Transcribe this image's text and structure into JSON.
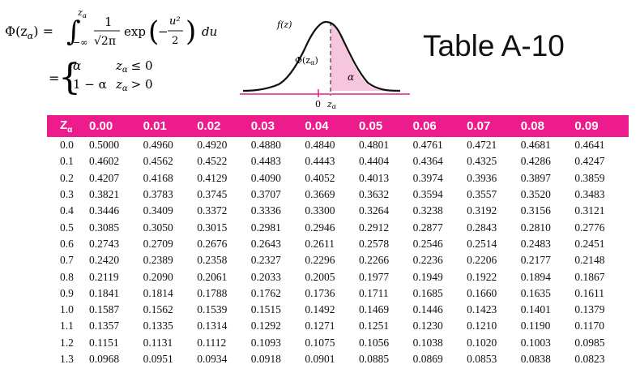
{
  "title": "Table A-10",
  "formula": {
    "lhs": "Φ(z",
    "sub_alpha": "α",
    "rhs_close": ") =",
    "integral_upper": "z",
    "integral_lower": "−∞",
    "frac_num": "1",
    "frac_den": "√2π",
    "exp_label": "exp",
    "exp_num": "u²",
    "exp_den": "2",
    "minus": "−",
    "du": "du",
    "eq2": "=",
    "case1_val": "α",
    "case1_cond": "z",
    "case1_op": "≤ 0",
    "case2_val": "1 − α",
    "case2_cond": "z",
    "case2_op": "> 0"
  },
  "curve": {
    "fz_label": "f(z)",
    "phi_label": "Φ(z",
    "phi_sub": "α",
    "phi_close": ")",
    "alpha_label": "α",
    "zero_label": "0",
    "z_label": "z",
    "z_sub": "α",
    "shade_color": "#f6c6dd",
    "line_color": "#ec1c8c"
  },
  "table": {
    "header_color": "#ec1c8c",
    "header_z": "Z",
    "header_z_sub": "α",
    "columns": [
      "0.00",
      "0.01",
      "0.02",
      "0.03",
      "0.04",
      "0.05",
      "0.06",
      "0.07",
      "0.08",
      "0.09"
    ],
    "rows": [
      {
        "z": "0.0",
        "values": [
          "0.5000",
          "0.4960",
          "0.4920",
          "0.4880",
          "0.4840",
          "0.4801",
          "0.4761",
          "0.4721",
          "0.4681",
          "0.4641"
        ]
      },
      {
        "z": "0.1",
        "values": [
          "0.4602",
          "0.4562",
          "0.4522",
          "0.4483",
          "0.4443",
          "0.4404",
          "0.4364",
          "0.4325",
          "0.4286",
          "0.4247"
        ]
      },
      {
        "z": "0.2",
        "values": [
          "0.4207",
          "0.4168",
          "0.4129",
          "0.4090",
          "0.4052",
          "0.4013",
          "0.3974",
          "0.3936",
          "0.3897",
          "0.3859"
        ]
      },
      {
        "z": "0.3",
        "values": [
          "0.3821",
          "0.3783",
          "0.3745",
          "0.3707",
          "0.3669",
          "0.3632",
          "0.3594",
          "0.3557",
          "0.3520",
          "0.3483"
        ]
      },
      {
        "z": "0.4",
        "values": [
          "0.3446",
          "0.3409",
          "0.3372",
          "0.3336",
          "0.3300",
          "0.3264",
          "0.3238",
          "0.3192",
          "0.3156",
          "0.3121"
        ]
      },
      {
        "z": "0.5",
        "values": [
          "0.3085",
          "0.3050",
          "0.3015",
          "0.2981",
          "0.2946",
          "0.2912",
          "0.2877",
          "0.2843",
          "0.2810",
          "0.2776"
        ]
      },
      {
        "z": "0.6",
        "values": [
          "0.2743",
          "0.2709",
          "0.2676",
          "0.2643",
          "0.2611",
          "0.2578",
          "0.2546",
          "0.2514",
          "0.2483",
          "0.2451"
        ]
      },
      {
        "z": "0.7",
        "values": [
          "0.2420",
          "0.2389",
          "0.2358",
          "0.2327",
          "0.2296",
          "0.2266",
          "0.2236",
          "0.2206",
          "0.2177",
          "0.2148"
        ]
      },
      {
        "z": "0.8",
        "values": [
          "0.2119",
          "0.2090",
          "0.2061",
          "0.2033",
          "0.2005",
          "0.1977",
          "0.1949",
          "0.1922",
          "0.1894",
          "0.1867"
        ]
      },
      {
        "z": "0.9",
        "values": [
          "0.1841",
          "0.1814",
          "0.1788",
          "0.1762",
          "0.1736",
          "0.1711",
          "0.1685",
          "0.1660",
          "0.1635",
          "0.1611"
        ]
      },
      {
        "z": "1.0",
        "values": [
          "0.1587",
          "0.1562",
          "0.1539",
          "0.1515",
          "0.1492",
          "0.1469",
          "0.1446",
          "0.1423",
          "0.1401",
          "0.1379"
        ]
      },
      {
        "z": "1.1",
        "values": [
          "0.1357",
          "0.1335",
          "0.1314",
          "0.1292",
          "0.1271",
          "0.1251",
          "0.1230",
          "0.1210",
          "0.1190",
          "0.1170"
        ]
      },
      {
        "z": "1.2",
        "values": [
          "0.1151",
          "0.1131",
          "0.1112",
          "0.1093",
          "0.1075",
          "0.1056",
          "0.1038",
          "0.1020",
          "0.1003",
          "0.0985"
        ]
      },
      {
        "z": "1.3",
        "values": [
          "0.0968",
          "0.0951",
          "0.0934",
          "0.0918",
          "0.0901",
          "0.0885",
          "0.0869",
          "0.0853",
          "0.0838",
          "0.0823"
        ]
      }
    ]
  }
}
